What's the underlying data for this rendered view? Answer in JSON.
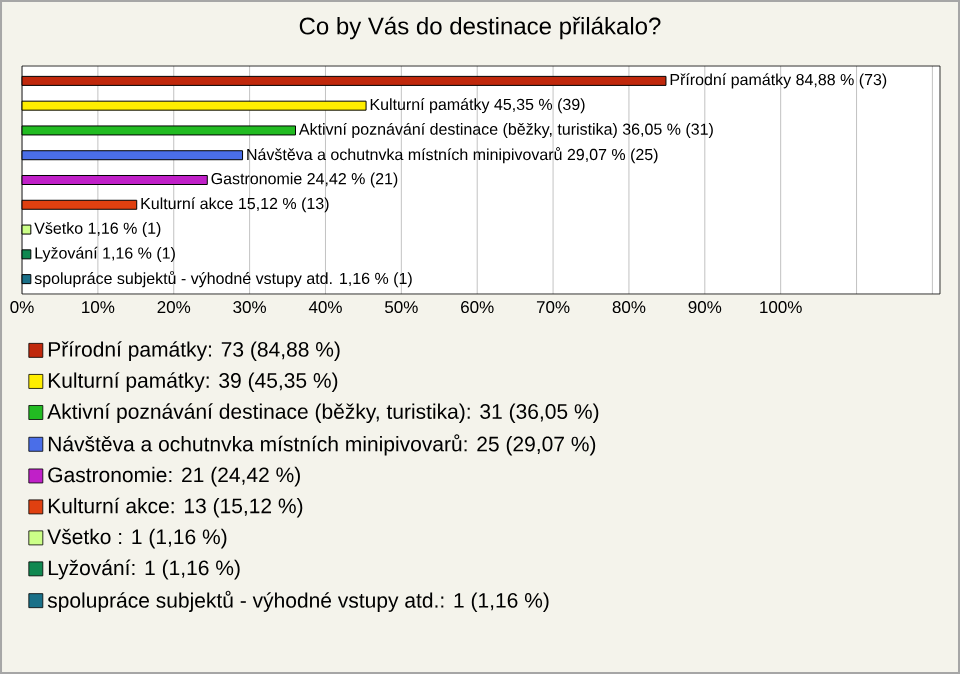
{
  "chart_data": {
    "type": "bar",
    "orientation": "horizontal",
    "title": "Co by Vás do destinace přilákalo?",
    "categories": [
      null,
      null,
      null,
      null,
      null,
      null,
      null,
      null,
      null
    ],
    "series": [
      {
        "name": "Přírodní památky: 73 (84,88 %)",
        "color": "#c0280c",
        "values": [
          84.88,
          null,
          null,
          null,
          null,
          null,
          null,
          null,
          null
        ],
        "value_labels": [
          "Přírodní památky 84,88 % (73)",
          null,
          null,
          null,
          null,
          null,
          null,
          null,
          null
        ]
      },
      {
        "name": "Kulturní památky: 39 (45,35 %)",
        "color": "#ffee00",
        "values": [
          null,
          45.35,
          null,
          null,
          null,
          null,
          null,
          null,
          null
        ],
        "value_labels": [
          null,
          "Kulturní památky 45,35 % (39)",
          null,
          null,
          null,
          null,
          null,
          null,
          null
        ]
      },
      {
        "name": "Aktivní poznávání destinace (běžky, turistika): 31 (36,05 %)",
        "color": "#22bb22",
        "values": [
          null,
          null,
          36.05,
          null,
          null,
          null,
          null,
          null,
          null
        ],
        "value_labels": [
          null,
          null,
          "Aktivní poznávání destinace (běžky, turistika) 36,05 % (31)",
          null,
          null,
          null,
          null,
          null,
          null
        ]
      },
      {
        "name": "Návštěva a ochutnvka místních minipivovarů: 25 (29,07 %)",
        "color": "#4a6ee8",
        "values": [
          null,
          null,
          null,
          29.07,
          null,
          null,
          null,
          null,
          null
        ],
        "value_labels": [
          null,
          null,
          null,
          "Návštěva a ochutnvka místních minipivovarů 29,07 % (25)",
          null,
          null,
          null,
          null,
          null
        ]
      },
      {
        "name": "Gastronomie: 21 (24,42 %)",
        "color": "#c020c8",
        "values": [
          null,
          null,
          null,
          null,
          24.42,
          null,
          null,
          null,
          null
        ],
        "value_labels": [
          null,
          null,
          null,
          null,
          "Gastronomie 24,42 % (21)",
          null,
          null,
          null,
          null
        ]
      },
      {
        "name": "Kulturní akce: 13 (15,12 %)",
        "color": "#e04010",
        "values": [
          null,
          null,
          null,
          null,
          null,
          15.12,
          null,
          null,
          null
        ],
        "value_labels": [
          null,
          null,
          null,
          null,
          null,
          "Kulturní akce 15,12 % (13)",
          null,
          null,
          null
        ]
      },
      {
        "name": "Všetko : 1 (1,16 %)",
        "color": "#ccff88",
        "values": [
          null,
          null,
          null,
          null,
          null,
          null,
          1.16,
          null,
          null
        ],
        "value_labels": [
          null,
          null,
          null,
          null,
          null,
          null,
          "Všetko  1,16 % (1)",
          null,
          null
        ]
      },
      {
        "name": "Lyžování: 1 (1,16 %)",
        "color": "#108850",
        "values": [
          null,
          null,
          null,
          null,
          null,
          null,
          null,
          1.16,
          null
        ],
        "value_labels": [
          null,
          null,
          null,
          null,
          null,
          null,
          null,
          "Lyžování 1,16 % (1)",
          null
        ]
      },
      {
        "name": "spolupráce subjektů - výhodné vstupy atd.: 1 (1,16 %)",
        "color": "#1a7088",
        "values": [
          null,
          null,
          null,
          null,
          null,
          null,
          null,
          null,
          1.16
        ],
        "value_labels": [
          null,
          null,
          null,
          null,
          null,
          null,
          null,
          null,
          "spolupráce subjektů - výhodné vstupy atd. 1,16 % (1)"
        ]
      }
    ],
    "xlim": [
      0,
      121
    ],
    "xticks": [
      {
        "value": 0,
        "label": "0%"
      },
      {
        "value": 10,
        "label": "10%"
      },
      {
        "value": 20,
        "label": "20%"
      },
      {
        "value": 30,
        "label": "30%"
      },
      {
        "value": 40,
        "label": "40%"
      },
      {
        "value": 50,
        "label": "50%"
      },
      {
        "value": 60,
        "label": "60%"
      },
      {
        "value": 70,
        "label": "70%"
      },
      {
        "value": 80,
        "label": "80%"
      },
      {
        "value": 90,
        "label": "90%"
      },
      {
        "value": 100,
        "label": "100%"
      },
      {
        "value": 110,
        "label": null
      },
      {
        "value": 120,
        "label": null
      }
    ],
    "grid": "x",
    "legend": "bottom"
  }
}
